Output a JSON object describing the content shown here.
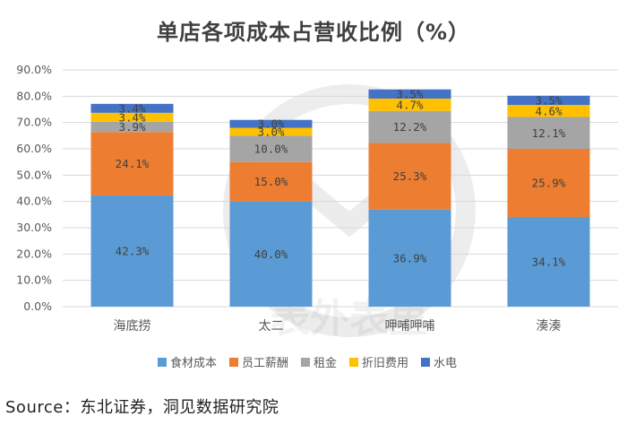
{
  "chart_data": {
    "type": "bar",
    "stacked": true,
    "title": "单店各项成本占营收比例（%）",
    "categories": [
      "海底捞",
      "太二",
      "呷哺呷哺",
      "湊湊"
    ],
    "series": [
      {
        "name": "食材成本",
        "color": "#5b9bd5",
        "values": [
          42.3,
          40.0,
          36.9,
          34.1
        ]
      },
      {
        "name": "员工薪酬",
        "color": "#ed7d31",
        "values": [
          24.1,
          15.0,
          25.3,
          25.9
        ]
      },
      {
        "name": "租金",
        "color": "#a5a5a5",
        "values": [
          3.9,
          10.0,
          12.2,
          12.1
        ]
      },
      {
        "name": "折旧费用",
        "color": "#ffc000",
        "values": [
          3.4,
          3.0,
          4.7,
          4.6
        ]
      },
      {
        "name": "水电",
        "color": "#4472c4",
        "values": [
          3.4,
          3.0,
          3.5,
          3.5
        ]
      }
    ],
    "ylim": [
      0,
      90
    ],
    "yticks": [
      "0.0%",
      "10.0%",
      "20.0%",
      "30.0%",
      "40.0%",
      "50.0%",
      "60.0%",
      "70.0%",
      "80.0%",
      "90.0%"
    ],
    "grid": true,
    "legend_position": "bottom"
  },
  "source": "Source：东北证券，洞见数据研究院",
  "watermark": "表外表里"
}
